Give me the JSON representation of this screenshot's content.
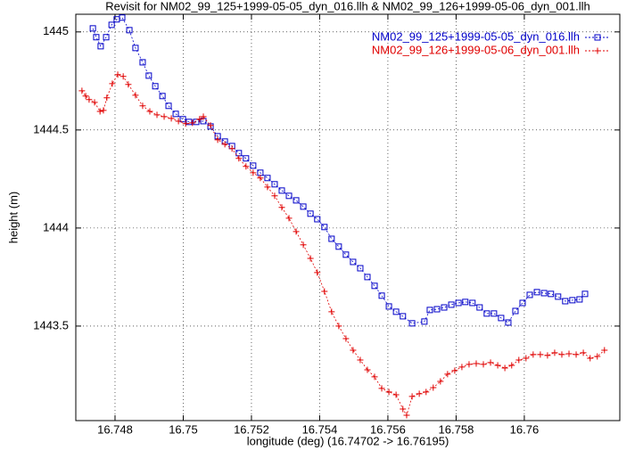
{
  "chart_data": {
    "type": "line",
    "title": "Revisit for NM02_99_125+1999-05-05_dyn_016.llh & NM02_99_126+1999-05-06_dyn_001.llh",
    "xlabel": "longitude (deg) (16.74702 -> 16.76195)",
    "ylabel": "height (m)",
    "xlim": [
      16.74685,
      16.7628
    ],
    "ylim": [
      1443.018,
      1445.09
    ],
    "xticks": [
      16.748,
      16.75,
      16.752,
      16.754,
      16.756,
      16.758,
      16.76
    ],
    "yticks": [
      1443.5,
      1444,
      1444.5,
      1445
    ],
    "grid": true,
    "legend": "top-right",
    "series": [
      {
        "name": "NM02_99_125+1999-05-05_dyn_016.llh",
        "color": "#0000c8",
        "marker": "square",
        "x": [
          16.74735,
          16.74745,
          16.74758,
          16.74774,
          16.7479,
          16.74805,
          16.74821,
          16.74842,
          16.7486,
          16.74881,
          16.74899,
          16.74918,
          16.74939,
          16.74957,
          16.74978,
          16.74999,
          16.75017,
          16.75038,
          16.75059,
          16.7508,
          16.75101,
          16.75122,
          16.75143,
          16.75163,
          16.75184,
          16.75205,
          16.75226,
          16.75247,
          16.75268,
          16.75289,
          16.7531,
          16.75331,
          16.75352,
          16.75373,
          16.75393,
          16.75414,
          16.75435,
          16.75456,
          16.75477,
          16.75498,
          16.75519,
          16.7554,
          16.75561,
          16.75582,
          16.75603,
          16.75624,
          16.75644,
          16.75671,
          16.75707,
          16.75723,
          16.75744,
          16.75765,
          16.75786,
          16.75807,
          16.75827,
          16.75848,
          16.75869,
          16.7589,
          16.75911,
          16.75932,
          16.75953,
          16.75974,
          16.75995,
          16.76016,
          16.76037,
          16.76058,
          16.76078,
          16.76099,
          16.7612,
          16.76141,
          16.76162,
          16.76178
        ],
        "values": [
          1445.018,
          1444.973,
          1444.927,
          1444.973,
          1445.036,
          1445.064,
          1445.073,
          1445.009,
          1444.918,
          1444.845,
          1444.777,
          1444.723,
          1444.673,
          1444.623,
          1444.582,
          1444.555,
          1444.541,
          1444.541,
          1444.545,
          1444.518,
          1444.468,
          1444.441,
          1444.418,
          1444.382,
          1444.355,
          1444.318,
          1444.282,
          1444.255,
          1444.223,
          1444.191,
          1444.164,
          1444.141,
          1444.109,
          1444.073,
          1444.045,
          1444.005,
          1443.945,
          1443.905,
          1443.864,
          1443.827,
          1443.795,
          1443.75,
          1443.705,
          1443.655,
          1443.6,
          1443.573,
          1443.55,
          1443.514,
          1443.523,
          1443.582,
          1443.586,
          1443.595,
          1443.609,
          1443.618,
          1443.623,
          1443.618,
          1443.595,
          1443.564,
          1443.564,
          1443.541,
          1443.518,
          1443.577,
          1443.618,
          1443.659,
          1443.673,
          1443.668,
          1443.664,
          1443.65,
          1443.627,
          1443.632,
          1443.636,
          1443.664
        ]
      },
      {
        "name": "NM02_99_126+1999-05-06_dyn_001.llh",
        "color": "#e00000",
        "marker": "plus",
        "x": [
          16.74703,
          16.74714,
          16.74724,
          16.7474,
          16.74756,
          16.74766,
          16.74776,
          16.74792,
          16.74808,
          16.74824,
          16.74839,
          16.7486,
          16.74881,
          16.74902,
          16.74923,
          16.74944,
          16.74965,
          16.74986,
          16.75007,
          16.75027,
          16.75048,
          16.75059,
          16.7508,
          16.75101,
          16.75122,
          16.75143,
          16.75163,
          16.75184,
          16.75205,
          16.75226,
          16.75247,
          16.75268,
          16.75289,
          16.7531,
          16.75331,
          16.75352,
          16.75373,
          16.75393,
          16.75414,
          16.75435,
          16.75456,
          16.75477,
          16.75498,
          16.75519,
          16.7554,
          16.75561,
          16.75582,
          16.75603,
          16.75624,
          16.75644,
          16.75655,
          16.75671,
          16.75692,
          16.75712,
          16.75733,
          16.75754,
          16.75775,
          16.75796,
          16.75817,
          16.75838,
          16.75859,
          16.7588,
          16.75901,
          16.75922,
          16.75943,
          16.75963,
          16.75984,
          16.76005,
          16.76026,
          16.76047,
          16.76068,
          16.76089,
          16.7611,
          16.76131,
          16.76152,
          16.76173,
          16.76193,
          16.76214,
          16.76235
        ],
        "values": [
          1444.7,
          1444.673,
          1444.655,
          1444.641,
          1444.595,
          1444.6,
          1444.664,
          1444.736,
          1444.782,
          1444.773,
          1444.732,
          1444.677,
          1444.623,
          1444.595,
          1444.577,
          1444.568,
          1444.559,
          1444.545,
          1444.532,
          1444.536,
          1444.555,
          1444.568,
          1444.523,
          1444.45,
          1444.427,
          1444.405,
          1444.355,
          1444.314,
          1444.282,
          1444.255,
          1444.209,
          1444.164,
          1444.105,
          1444.05,
          1443.982,
          1443.914,
          1443.845,
          1443.773,
          1443.677,
          1443.573,
          1443.5,
          1443.436,
          1443.377,
          1443.327,
          1443.277,
          1443.241,
          1443.182,
          1443.164,
          1443.15,
          1443.077,
          1443.045,
          1443.141,
          1443.155,
          1443.164,
          1443.186,
          1443.218,
          1443.255,
          1443.273,
          1443.291,
          1443.305,
          1443.309,
          1443.305,
          1443.314,
          1443.3,
          1443.286,
          1443.3,
          1443.327,
          1443.336,
          1443.355,
          1443.355,
          1443.35,
          1443.364,
          1443.355,
          1443.359,
          1443.355,
          1443.364,
          1443.336,
          1443.345,
          1443.377
        ]
      }
    ]
  }
}
